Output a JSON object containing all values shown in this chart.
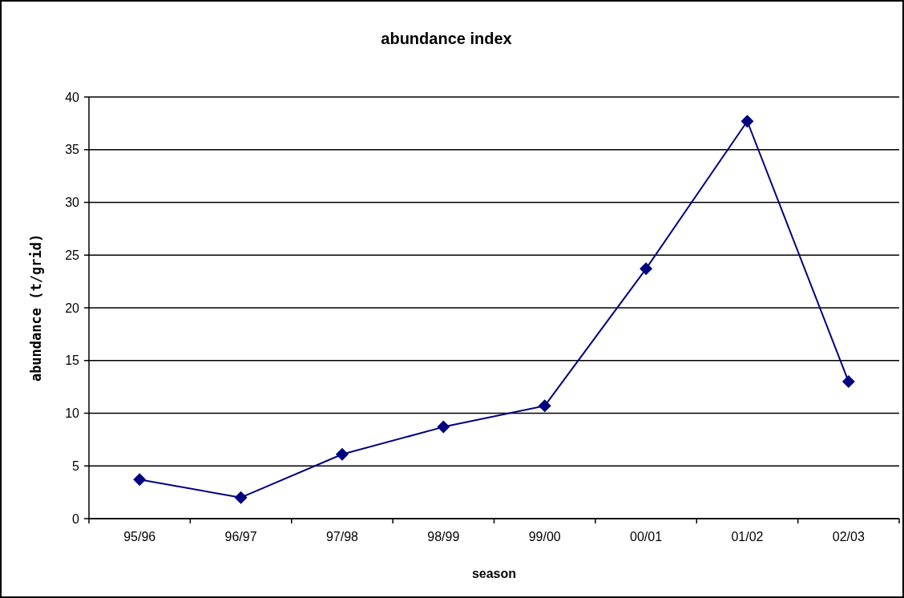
{
  "chart_data": {
    "type": "line",
    "title": "abundance index",
    "xlabel": "season",
    "ylabel": "abundance (t/grid)",
    "categories": [
      "95/96",
      "96/97",
      "97/98",
      "98/99",
      "99/00",
      "00/01",
      "01/02",
      "02/03"
    ],
    "series": [
      {
        "color": "#000080",
        "values": [
          3.7,
          2.0,
          6.1,
          8.7,
          10.7,
          23.7,
          37.7,
          13.0
        ]
      }
    ],
    "ylim": [
      0,
      40
    ],
    "yticks": [
      0,
      5,
      10,
      15,
      20,
      25,
      30,
      35,
      40
    ],
    "grid": "y",
    "marker": "diamond",
    "line_style": "solid"
  }
}
